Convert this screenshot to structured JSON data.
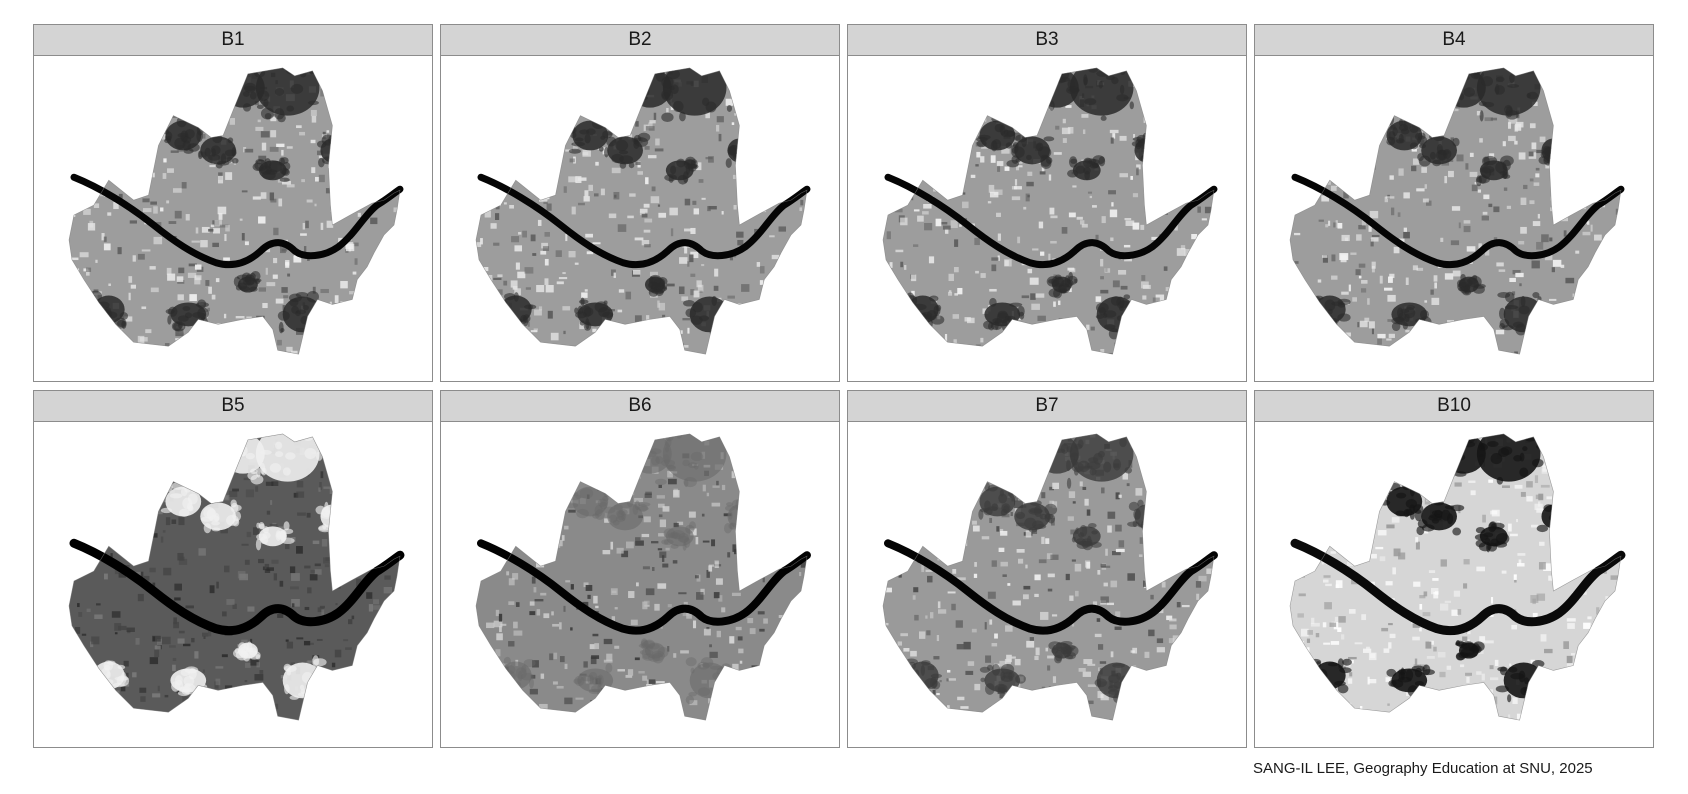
{
  "figure": {
    "panels": [
      {
        "label": "B1",
        "style": "vis"
      },
      {
        "label": "B2",
        "style": "vis"
      },
      {
        "label": "B3",
        "style": "vis"
      },
      {
        "label": "B4",
        "style": "vis"
      },
      {
        "label": "B5",
        "style": "nir"
      },
      {
        "label": "B6",
        "style": "swir1"
      },
      {
        "label": "B7",
        "style": "swir2"
      },
      {
        "label": "B10",
        "style": "thermal"
      }
    ],
    "caption": "SANG-IL LEE, Geography Education at SNU, 2025",
    "colors": {
      "strip_bg": "#d4d4d4",
      "panel_border": "#8c8c8c",
      "river": "#050505"
    }
  }
}
